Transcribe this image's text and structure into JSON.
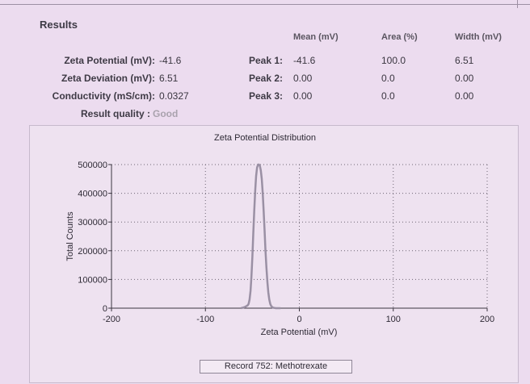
{
  "results": {
    "title": "Results",
    "headers": {
      "mean": "Mean (mV)",
      "area": "Area (%)",
      "width": "Width (mV)"
    },
    "rows": [
      {
        "label": "Zeta Potential (mV):",
        "value": "-41.6",
        "peak_label": "Peak 1:",
        "mean": "-41.6",
        "area": "100.0",
        "width": "6.51"
      },
      {
        "label": "Zeta Deviation (mV):",
        "value": "6.51",
        "peak_label": "Peak 2:",
        "mean": "0.00",
        "area": "0.0",
        "width": "0.00"
      },
      {
        "label": "Conductivity (mS/cm):",
        "value": "0.0327",
        "peak_label": "Peak 3:",
        "mean": "0.00",
        "area": "0.0",
        "width": "0.00"
      }
    ],
    "quality_label": "Result quality :",
    "quality_value": "Good"
  },
  "chart_data": {
    "type": "line",
    "title": "Zeta Potential Distribution",
    "xlabel": "Zeta Potential (mV)",
    "ylabel": "Total Counts",
    "xlim": [
      -200,
      200
    ],
    "ylim": [
      0,
      500000
    ],
    "xticks": [
      -200,
      -100,
      0,
      100,
      200
    ],
    "yticks": [
      0,
      100000,
      200000,
      300000,
      400000,
      500000
    ],
    "xtick_labels": [
      "-200",
      "-100",
      "0",
      "100",
      "200"
    ],
    "ytick_labels": [
      "0",
      "100000",
      "200000",
      "300000",
      "400000",
      "500000"
    ],
    "grid": true,
    "series": [
      {
        "color": "#9a90a4",
        "x": [
          -62,
          -60,
          -58,
          -56,
          -55,
          -54,
          -53,
          -52,
          -51,
          -50,
          -49,
          -48,
          -47,
          -46,
          -45,
          -44,
          -43,
          -42,
          -41,
          -40,
          -39,
          -38,
          -37,
          -36,
          -35,
          -34,
          -33,
          -32,
          -31,
          -30,
          -29,
          -28,
          -27,
          -26,
          -25,
          -24,
          -22,
          -20
        ],
        "y": [
          0,
          2000,
          4000,
          8000,
          10000,
          15000,
          30000,
          60000,
          110000,
          180000,
          260000,
          340000,
          410000,
          460000,
          490000,
          500000,
          500000,
          495000,
          480000,
          450000,
          400000,
          340000,
          270000,
          200000,
          140000,
          90000,
          55000,
          30000,
          15000,
          8000,
          4000,
          2000,
          1000,
          500,
          0,
          0,
          0,
          0
        ]
      }
    ]
  },
  "legend": {
    "record": "Record 752: Methotrexate"
  }
}
